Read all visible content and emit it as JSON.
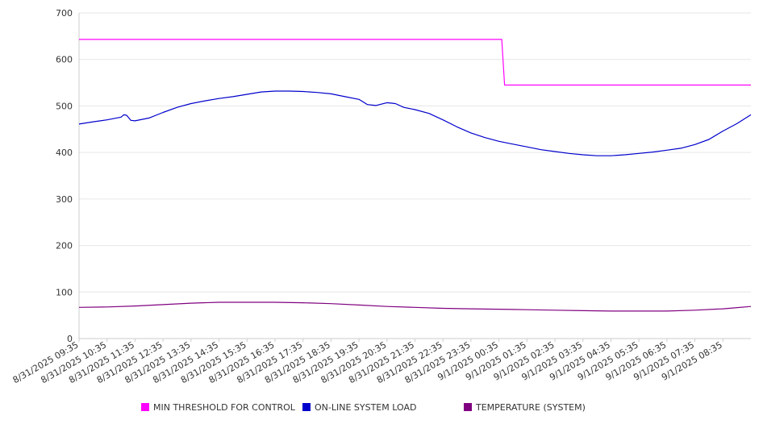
{
  "chart_data": {
    "type": "line",
    "ylim": [
      0,
      700
    ],
    "y_ticks": [
      0,
      100,
      200,
      300,
      400,
      500,
      600,
      700
    ],
    "grid": true,
    "legend_position": "bottom",
    "x_tick_labels": [
      "8/31/2025 09:35",
      "8/31/2025 10:35",
      "8/31/2025 11:35",
      "8/31/2025 12:35",
      "8/31/2025 13:35",
      "8/31/2025 14:35",
      "8/31/2025 15:35",
      "8/31/2025 16:35",
      "8/31/2025 17:35",
      "8/31/2025 18:35",
      "8/31/2025 19:35",
      "8/31/2025 20:35",
      "8/31/2025 21:35",
      "8/31/2025 22:35",
      "8/31/2025 23:35",
      "9/1/2025 00:35",
      "9/1/2025 01:35",
      "9/1/2025 02:35",
      "9/1/2025 03:35",
      "9/1/2025 04:35",
      "9/1/2025 05:35",
      "9/1/2025 06:35",
      "9/1/2025 07:35",
      "9/1/2025 08:35"
    ],
    "x_hours": [
      0,
      24
    ],
    "series": [
      {
        "name": "MIN THRESHOLD FOR CONTROL",
        "color": "#ff00ff",
        "points": [
          [
            0,
            643
          ],
          [
            15.1,
            643
          ],
          [
            15.2,
            545
          ],
          [
            24,
            545
          ]
        ]
      },
      {
        "name": "ON-LINE SYSTEM LOAD",
        "color": "#0000cc",
        "points": [
          [
            0,
            461
          ],
          [
            0.5,
            466
          ],
          [
            1,
            470
          ],
          [
            1.5,
            476
          ],
          [
            1.6,
            481
          ],
          [
            1.7,
            480
          ],
          [
            1.85,
            469
          ],
          [
            2,
            468
          ],
          [
            2.5,
            474
          ],
          [
            3,
            486
          ],
          [
            3.5,
            497
          ],
          [
            4,
            505
          ],
          [
            4.5,
            511
          ],
          [
            5,
            516
          ],
          [
            5.5,
            520
          ],
          [
            6,
            525
          ],
          [
            6.5,
            530
          ],
          [
            7,
            532
          ],
          [
            7.5,
            532
          ],
          [
            8,
            531
          ],
          [
            8.5,
            529
          ],
          [
            9,
            526
          ],
          [
            9.5,
            520
          ],
          [
            10,
            514
          ],
          [
            10.3,
            503
          ],
          [
            10.6,
            501
          ],
          [
            11,
            507
          ],
          [
            11.3,
            505
          ],
          [
            11.6,
            497
          ],
          [
            12,
            492
          ],
          [
            12.5,
            484
          ],
          [
            13,
            470
          ],
          [
            13.5,
            455
          ],
          [
            14,
            442
          ],
          [
            14.5,
            432
          ],
          [
            15,
            424
          ],
          [
            15.5,
            418
          ],
          [
            16,
            412
          ],
          [
            16.5,
            406
          ],
          [
            17,
            402
          ],
          [
            17.5,
            398
          ],
          [
            18,
            395
          ],
          [
            18.5,
            393
          ],
          [
            19,
            393
          ],
          [
            19.5,
            395
          ],
          [
            20,
            398
          ],
          [
            20.5,
            401
          ],
          [
            21,
            405
          ],
          [
            21.5,
            409
          ],
          [
            22,
            417
          ],
          [
            22.5,
            428
          ],
          [
            23,
            446
          ],
          [
            23.5,
            462
          ],
          [
            24,
            481
          ]
        ]
      },
      {
        "name": "TEMPERATURE (SYSTEM)",
        "color": "#800080",
        "points": [
          [
            0,
            67
          ],
          [
            1,
            68
          ],
          [
            2,
            70
          ],
          [
            3,
            73
          ],
          [
            4,
            76
          ],
          [
            5,
            78
          ],
          [
            6,
            78
          ],
          [
            7,
            78
          ],
          [
            8,
            77
          ],
          [
            9,
            75
          ],
          [
            10,
            72
          ],
          [
            11,
            69
          ],
          [
            12,
            67
          ],
          [
            13,
            65
          ],
          [
            14,
            64
          ],
          [
            15,
            63
          ],
          [
            16,
            62
          ],
          [
            17,
            61
          ],
          [
            18,
            60
          ],
          [
            19,
            59
          ],
          [
            20,
            59
          ],
          [
            21,
            59
          ],
          [
            22,
            61
          ],
          [
            23,
            64
          ],
          [
            24,
            69
          ]
        ]
      }
    ]
  }
}
